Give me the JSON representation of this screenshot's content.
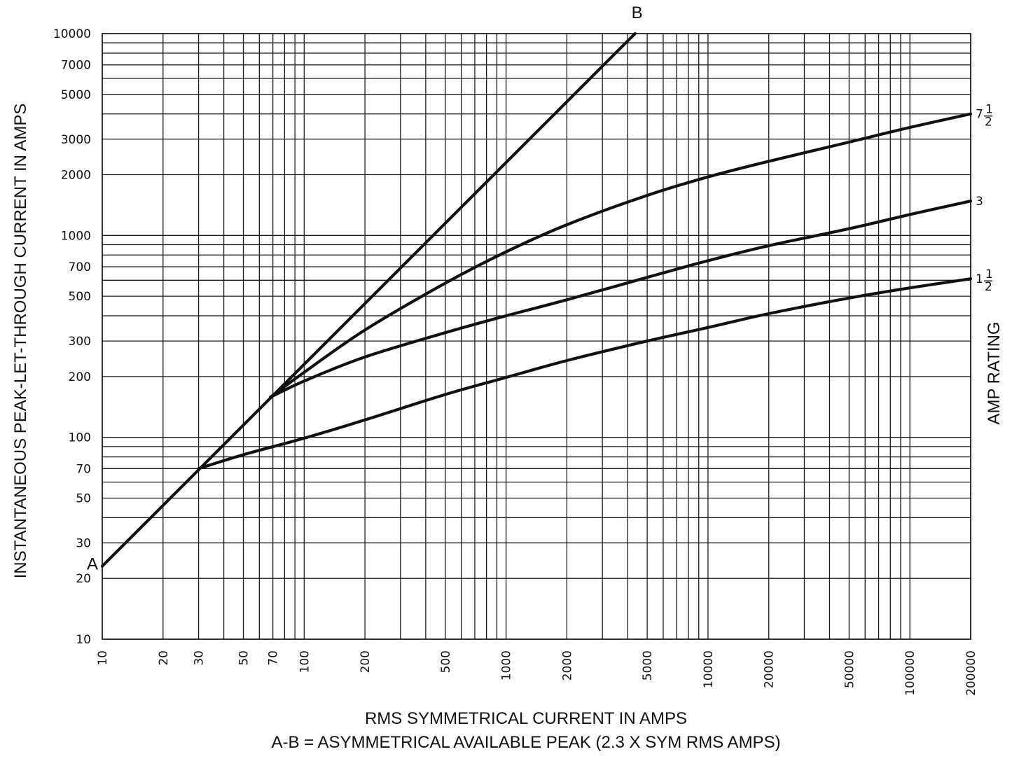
{
  "chart_data": {
    "type": "line",
    "x_scale": "log",
    "y_scale": "log",
    "xlim": [
      10,
      200000
    ],
    "ylim": [
      10,
      10000
    ],
    "grid": true,
    "xlabel": "RMS SYMMETRICAL CURRENT IN AMPS",
    "ylabel": "INSTANTANEOUS PEAK-LET-THROUGH CURRENT IN AMPS",
    "right_label": "AMP RATING",
    "caption": "A-B = ASYMMETRICAL AVAILABLE PEAK (2.3 X SYM RMS AMPS)",
    "x_ticks": [
      {
        "value": 10,
        "label": "10"
      },
      {
        "value": 20,
        "label": "20"
      },
      {
        "value": 30,
        "label": "30"
      },
      {
        "value": 50,
        "label": "50"
      },
      {
        "value": 70,
        "label": "70"
      },
      {
        "value": 100,
        "label": "100"
      },
      {
        "value": 200,
        "label": "200"
      },
      {
        "value": 500,
        "label": "500"
      },
      {
        "value": 1000,
        "label": "1000"
      },
      {
        "value": 2000,
        "label": "2000"
      },
      {
        "value": 5000,
        "label": "5000"
      },
      {
        "value": 10000,
        "label": "10000"
      },
      {
        "value": 20000,
        "label": "20000"
      },
      {
        "value": 50000,
        "label": "50000"
      },
      {
        "value": 100000,
        "label": "100000"
      },
      {
        "value": 200000,
        "label": "200000"
      }
    ],
    "y_ticks": [
      {
        "value": 10,
        "label": "10"
      },
      {
        "value": 20,
        "label": "20"
      },
      {
        "value": 30,
        "label": "30"
      },
      {
        "value": 50,
        "label": "50"
      },
      {
        "value": 70,
        "label": "70"
      },
      {
        "value": 100,
        "label": "100"
      },
      {
        "value": 200,
        "label": "200"
      },
      {
        "value": 300,
        "label": "300"
      },
      {
        "value": 500,
        "label": "500"
      },
      {
        "value": 700,
        "label": "700"
      },
      {
        "value": 1000,
        "label": "1000"
      },
      {
        "value": 2000,
        "label": "2000"
      },
      {
        "value": 3000,
        "label": "3000"
      },
      {
        "value": 5000,
        "label": "5000"
      },
      {
        "value": 7000,
        "label": "7000"
      },
      {
        "value": 10000,
        "label": "10000"
      }
    ],
    "x_grid": [
      10,
      20,
      30,
      40,
      50,
      60,
      70,
      80,
      90,
      100,
      200,
      300,
      400,
      500,
      600,
      700,
      800,
      900,
      1000,
      2000,
      3000,
      4000,
      5000,
      6000,
      7000,
      8000,
      9000,
      10000,
      20000,
      30000,
      40000,
      50000,
      60000,
      70000,
      80000,
      90000,
      100000,
      200000
    ],
    "y_grid": [
      10,
      20,
      30,
      40,
      50,
      60,
      70,
      80,
      90,
      100,
      200,
      300,
      400,
      500,
      600,
      700,
      800,
      900,
      1000,
      2000,
      3000,
      4000,
      5000,
      6000,
      7000,
      8000,
      9000,
      10000
    ],
    "reference_line": {
      "name": "A-B",
      "start_label": "A",
      "end_label": "B",
      "x": [
        10,
        4350
      ],
      "y": [
        23,
        10000
      ]
    },
    "series": [
      {
        "rating": {
          "whole": "1",
          "num": "1",
          "den": "2"
        },
        "x": [
          30,
          50,
          100,
          200,
          500,
          1000,
          2000,
          5000,
          10000,
          20000,
          50000,
          100000,
          200000
        ],
        "y": [
          70,
          82,
          99,
          122,
          163,
          198,
          240,
          300,
          350,
          410,
          490,
          550,
          610
        ]
      },
      {
        "rating": {
          "whole": "3",
          "num": "",
          "den": ""
        },
        "x": [
          68,
          100,
          200,
          500,
          1000,
          2000,
          5000,
          10000,
          20000,
          50000,
          100000,
          200000
        ],
        "y": [
          158,
          190,
          250,
          330,
          400,
          480,
          620,
          750,
          890,
          1080,
          1270,
          1480
        ]
      },
      {
        "rating": {
          "whole": "7",
          "num": "1",
          "den": "2"
        },
        "x": [
          68,
          100,
          200,
          500,
          1000,
          2000,
          5000,
          10000,
          20000,
          50000,
          100000,
          200000
        ],
        "y": [
          158,
          210,
          340,
          580,
          830,
          1130,
          1580,
          1950,
          2330,
          2900,
          3430,
          4000
        ]
      }
    ]
  }
}
